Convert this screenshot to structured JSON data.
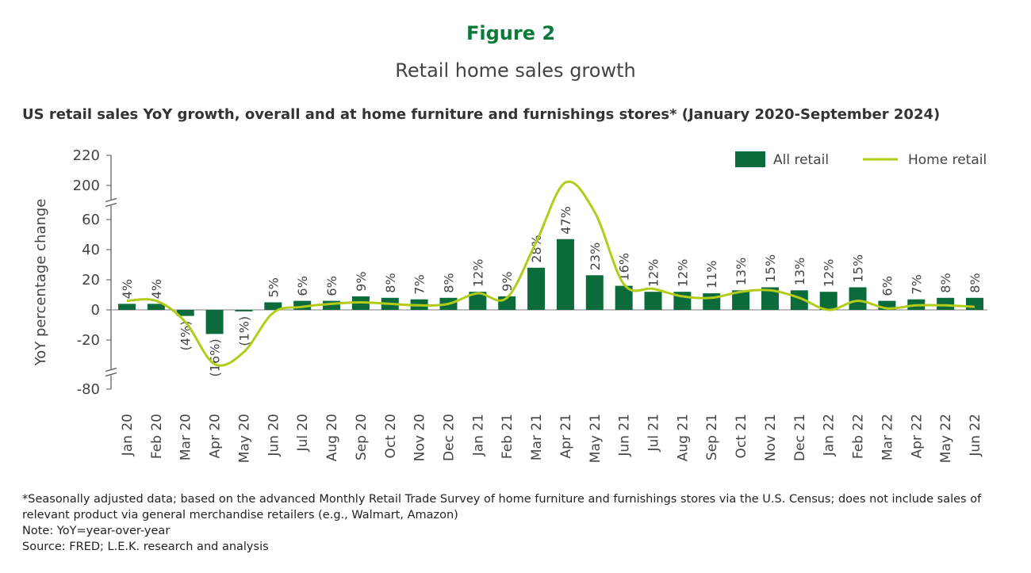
{
  "chart_data": {
    "type": "bar_line",
    "figure_label": "Figure 2",
    "title": "Retail home sales growth",
    "subtitle": "US retail sales YoY growth, overall and at home furniture and furnishings stores* (January 2020-September 2024)",
    "ylabel": "YoY percentage change",
    "categories": [
      "Jan 20",
      "Feb 20",
      "Mar 20",
      "Apr 20",
      "May 20",
      "Jun 20",
      "Jul 20",
      "Aug 20",
      "Sep 20",
      "Oct 20",
      "Nov 20",
      "Dec 20",
      "Jan 21",
      "Feb 21",
      "Mar 21",
      "Apr 21",
      "May 21",
      "Jun 21",
      "Jul 21",
      "Aug 21",
      "Sep 21",
      "Oct 21",
      "Nov 21",
      "Dec 21",
      "Jan 22",
      "Feb 22",
      "Mar 22",
      "Apr 22",
      "May 22",
      "Jun 22"
    ],
    "series": [
      {
        "name": "All retail",
        "type": "bar",
        "color": "#0b6b3a",
        "values": [
          4,
          4,
          -4,
          -16,
          -1,
          5,
          6,
          6,
          9,
          8,
          7,
          8,
          12,
          9,
          28,
          47,
          23,
          16,
          12,
          12,
          11,
          13,
          15,
          13,
          12,
          15,
          6,
          7,
          8,
          8
        ],
        "value_labels": [
          "4%",
          "4%",
          "(4%)",
          "(16%)",
          "(1%)",
          "5%",
          "6%",
          "6%",
          "9%",
          "8%",
          "7%",
          "8%",
          "12%",
          "9%",
          "28%",
          "47%",
          "23%",
          "16%",
          "12%",
          "12%",
          "11%",
          "13%",
          "15%",
          "13%",
          "12%",
          "15%",
          "6%",
          "7%",
          "8%",
          "8%"
        ]
      },
      {
        "name": "Home retail",
        "type": "line",
        "color": "#b3cc1a",
        "values": [
          6,
          6,
          -8,
          -36,
          -28,
          -2,
          2,
          4,
          5,
          4,
          3,
          4,
          11,
          8,
          45,
          202,
          65,
          17,
          14,
          9,
          8,
          12,
          13,
          8,
          0,
          6,
          1,
          3,
          3,
          2
        ]
      }
    ],
    "ylim": [
      -80,
      220
    ],
    "yticks": [
      220,
      200,
      60,
      40,
      20,
      0,
      -20,
      -80
    ],
    "y_breaks": [
      [
        70,
        190
      ],
      [
        -70,
        -40
      ]
    ],
    "legend": "upper right",
    "notes": [
      "*Seasonally adjusted data; based on the advanced Monthly Retail Trade Survey of home furniture and furnishings stores via the U.S. Census; does not include sales of relevant product via general merchandise retailers (e.g., Walmart, Amazon)",
      "Note: YoY=year-over-year",
      "Source: FRED; L.E.K. research and analysis"
    ]
  }
}
